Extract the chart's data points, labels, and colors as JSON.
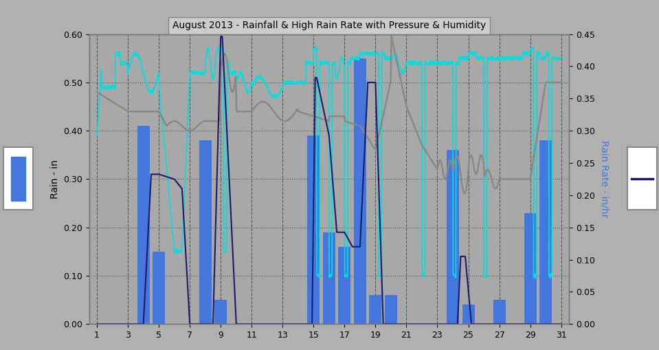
{
  "title": "August 2013 - Rainfall & High Rain Rate with Pressure & Humidity",
  "background_color": "#b0b0b0",
  "plot_bg_color": "#a8a8a8",
  "left_ylabel": "Rain - in",
  "right_ylabel": "Rain Rate - in/hr",
  "xlim_left": 0.5,
  "xlim_right": 31.5,
  "ylim_left": [
    0.0,
    0.6
  ],
  "ylim_right": [
    0.0,
    0.45
  ],
  "xticks": [
    1,
    3,
    5,
    7,
    9,
    11,
    13,
    15,
    17,
    19,
    21,
    23,
    25,
    27,
    29,
    31
  ],
  "yticks_left": [
    0.0,
    0.1,
    0.2,
    0.3,
    0.4,
    0.5,
    0.6
  ],
  "yticks_right": [
    0.0,
    0.05,
    0.1,
    0.15,
    0.2,
    0.25,
    0.3,
    0.35,
    0.4,
    0.45
  ],
  "bar_color": "#4477dd",
  "bar_days": [
    1,
    2,
    3,
    4,
    5,
    6,
    7,
    8,
    9,
    10,
    11,
    12,
    13,
    14,
    15,
    16,
    17,
    18,
    19,
    20,
    21,
    22,
    23,
    24,
    25,
    26,
    27,
    28,
    29,
    30,
    31
  ],
  "bar_values": [
    0.0,
    0.0,
    0.0,
    0.41,
    0.15,
    0.0,
    0.0,
    0.38,
    0.05,
    0.0,
    0.0,
    0.0,
    0.0,
    0.0,
    0.39,
    0.19,
    0.16,
    0.55,
    0.06,
    0.06,
    0.0,
    0.0,
    0.0,
    0.36,
    0.04,
    0.0,
    0.05,
    0.0,
    0.23,
    0.38,
    0.0
  ],
  "navy_color": "#1a1a6e",
  "cyan_color": "#00dede",
  "gray_color": "#888888"
}
